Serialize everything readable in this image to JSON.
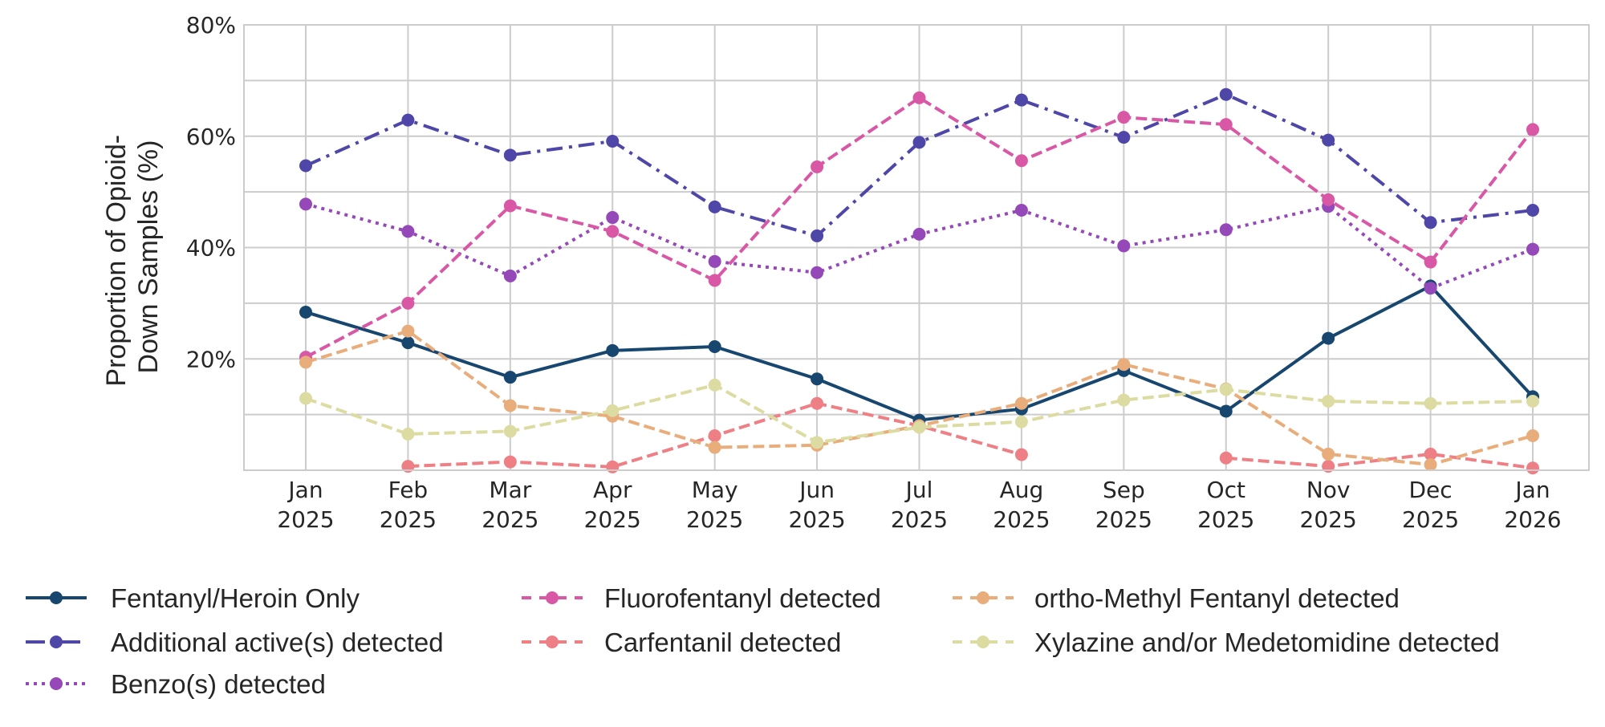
{
  "chart_data": {
    "type": "line",
    "title": "",
    "xlabel": "",
    "ylabel": "Proportion of Opioid-\nDown Samples (%)",
    "ylabel_lines": [
      "Proportion of Opioid-",
      "Down Samples (%)"
    ],
    "ylim": [
      0,
      80
    ],
    "yticks": [
      20,
      40,
      60,
      80
    ],
    "ytick_labels": [
      "20%",
      "40%",
      "60%",
      "80%"
    ],
    "grid": true,
    "legend_position": "bottom",
    "categories": [
      [
        "Jan",
        "2025"
      ],
      [
        "Feb",
        "2025"
      ],
      [
        "Mar",
        "2025"
      ],
      [
        "Apr",
        "2025"
      ],
      [
        "May",
        "2025"
      ],
      [
        "Jun",
        "2025"
      ],
      [
        "Jul",
        "2025"
      ],
      [
        "Aug",
        "2025"
      ],
      [
        "Sep",
        "2025"
      ],
      [
        "Oct",
        "2025"
      ],
      [
        "Nov",
        "2025"
      ],
      [
        "Dec",
        "2025"
      ],
      [
        "Jan",
        "2026"
      ]
    ],
    "series": [
      {
        "name": "Fentanyl/Heroin Only",
        "color": "#17466f",
        "style": "solid",
        "values": [
          28.4,
          22.9,
          16.7,
          21.5,
          22.2,
          16.4,
          9.0,
          11.0,
          17.9,
          10.6,
          23.7,
          33.1,
          13.2
        ]
      },
      {
        "name": "Additional active(s) detected",
        "color": "#4e47a8",
        "style": "dashdot",
        "values": [
          54.7,
          62.9,
          56.6,
          59.1,
          47.3,
          42.1,
          58.9,
          66.5,
          59.8,
          67.5,
          59.3,
          44.5,
          46.7
        ]
      },
      {
        "name": "Benzo(s) detected",
        "color": "#9548b7",
        "style": "dotted",
        "values": [
          47.8,
          42.9,
          34.9,
          45.4,
          37.5,
          35.5,
          42.4,
          46.7,
          40.3,
          43.2,
          47.4,
          32.7,
          39.7
        ]
      },
      {
        "name": "Fluorofentanyl detected",
        "color": "#d958a6",
        "style": "dashed",
        "values": [
          20.3,
          30.0,
          47.5,
          42.9,
          34.1,
          54.5,
          66.9,
          55.6,
          63.4,
          62.1,
          48.6,
          37.4,
          61.2
        ]
      },
      {
        "name": "Carfentanil detected",
        "color": "#ee7f85",
        "style": "dashed",
        "values": [
          null,
          0.7,
          1.5,
          0.6,
          6.2,
          12.0,
          8.0,
          2.8,
          null,
          2.2,
          0.7,
          2.9,
          0.4
        ]
      },
      {
        "name": "ortho-Methyl Fentanyl detected",
        "color": "#e8ad7b",
        "style": "dashed",
        "values": [
          19.4,
          25.0,
          11.6,
          9.7,
          4.1,
          4.5,
          8.0,
          12.0,
          19.0,
          14.6,
          2.9,
          1.0,
          6.2
        ]
      },
      {
        "name": "Xylazine and/or Medetomidine detected",
        "color": "#dcdca2",
        "style": "dashed",
        "values": [
          12.9,
          6.5,
          7.0,
          10.7,
          15.3,
          5.0,
          7.7,
          8.7,
          12.6,
          14.5,
          12.4,
          12.0,
          12.4
        ]
      }
    ]
  }
}
